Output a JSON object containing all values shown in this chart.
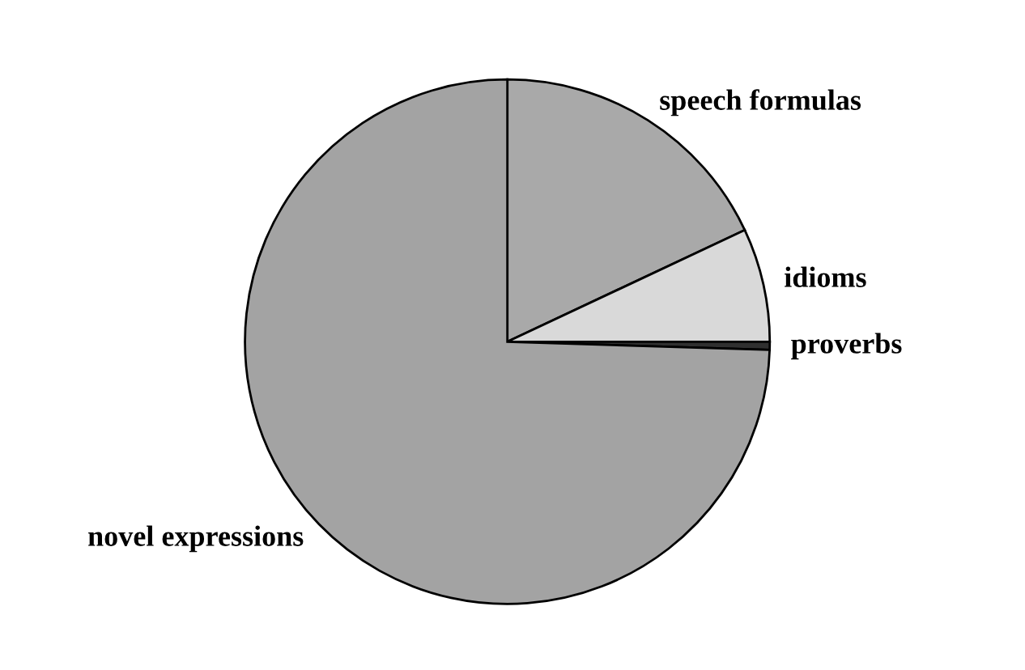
{
  "chart_data": {
    "type": "pie",
    "categories": [
      "speech formulas",
      "idioms",
      "proverbs",
      "novel expressions"
    ],
    "values": [
      18,
      7,
      0.5,
      74.5
    ],
    "colors": [
      "#a9a9a9",
      "#d9d9d9",
      "#303030",
      "#a3a3a3"
    ]
  }
}
